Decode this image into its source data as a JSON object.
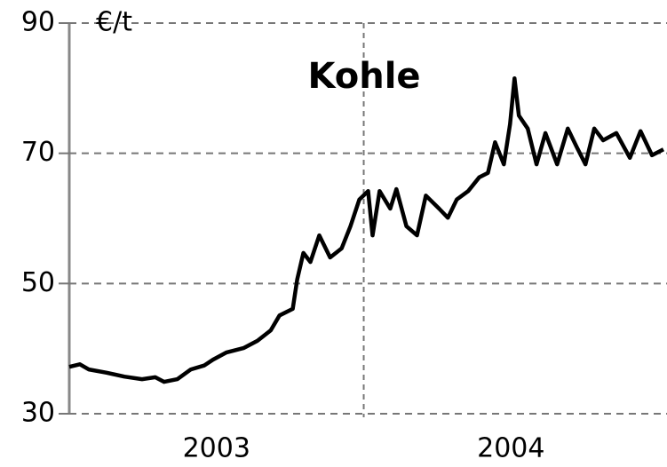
{
  "chart_data": {
    "type": "line",
    "title": "Kohle",
    "y_unit": "€/t",
    "x": [
      2003.0,
      2003.036,
      2003.066,
      2003.127,
      2003.187,
      2003.247,
      2003.292,
      2003.322,
      2003.367,
      2003.413,
      2003.458,
      2003.488,
      2003.533,
      2003.593,
      2003.639,
      2003.684,
      2003.714,
      2003.759,
      2003.774,
      2003.795,
      2003.819,
      2003.849,
      2003.886,
      2003.925,
      2003.955,
      2003.985,
      2004.015,
      2004.03,
      2004.054,
      2004.09,
      2004.111,
      2004.145,
      2004.181,
      2004.211,
      2004.256,
      2004.286,
      2004.316,
      2004.355,
      2004.392,
      2004.422,
      2004.446,
      2004.476,
      2004.497,
      2004.512,
      2004.527,
      2004.557,
      2004.587,
      2004.617,
      2004.657,
      2004.693,
      2004.723,
      2004.753,
      2004.783,
      2004.813,
      2004.858,
      2004.904,
      2004.94,
      2004.979,
      2005.018
    ],
    "series": [
      {
        "name": "Kohle",
        "color": "#000000",
        "values": [
          37.2,
          37.6,
          36.8,
          36.3,
          35.7,
          35.3,
          35.6,
          34.9,
          35.3,
          36.8,
          37.4,
          38.3,
          39.4,
          40.1,
          41.2,
          42.8,
          45.1,
          46.1,
          50.6,
          54.7,
          53.3,
          57.4,
          54.0,
          55.4,
          58.8,
          62.9,
          64.2,
          57.4,
          64.2,
          61.5,
          64.5,
          58.8,
          57.4,
          63.5,
          61.5,
          60.1,
          62.9,
          64.2,
          66.3,
          67.0,
          71.7,
          68.3,
          74.5,
          81.5,
          75.8,
          73.8,
          68.3,
          73.1,
          68.3,
          73.8,
          71.0,
          68.3,
          73.8,
          72.0,
          73.1,
          69.3,
          73.4,
          69.7,
          70.6
        ]
      }
    ],
    "periods": [
      "2003",
      "2004"
    ],
    "xgrid": [
      2004
    ],
    "xlim": [
      2003,
      2005.03
    ],
    "ylim": [
      30,
      90
    ],
    "yticks": [
      30,
      50,
      70,
      90
    ],
    "grid": true
  }
}
